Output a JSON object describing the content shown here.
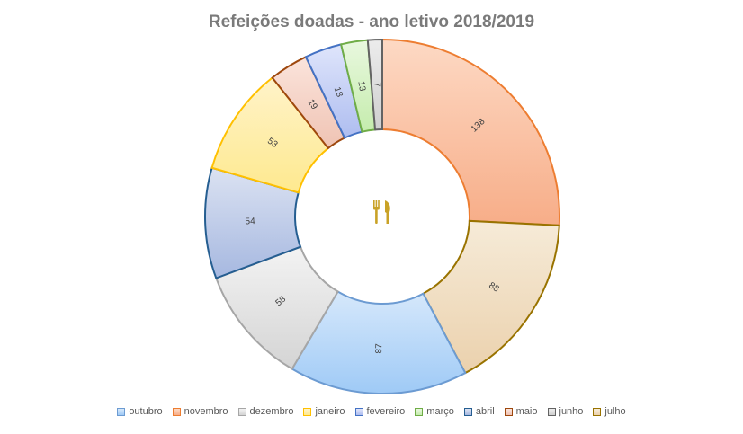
{
  "chart_data": {
    "type": "pie",
    "title": "Refeições doadas - ano letivo 2018/2019",
    "categories": [
      "outubro",
      "novembro",
      "dezembro",
      "janeiro",
      "fevereiro",
      "março",
      "abril",
      "maio",
      "junho",
      "julho"
    ],
    "series": [
      {
        "values": [
          87,
          138,
          58,
          53,
          18,
          13,
          54,
          19,
          7,
          88
        ]
      }
    ],
    "colors": {
      "outubro": {
        "fill_top": "#d6e8fb",
        "fill_bottom": "#9fcaf6",
        "stroke": "#6c9bd2"
      },
      "novembro": {
        "fill_top": "#fdd9c4",
        "fill_bottom": "#f7ad88",
        "stroke": "#ed7d31"
      },
      "dezembro": {
        "fill_top": "#f3f3f3",
        "fill_bottom": "#d4d4d4",
        "stroke": "#a6a6a6"
      },
      "janeiro": {
        "fill_top": "#fff3c9",
        "fill_bottom": "#fee98f",
        "stroke": "#ffc000"
      },
      "fevereiro": {
        "fill_top": "#dfe5fb",
        "fill_bottom": "#aebdf0",
        "stroke": "#4472c4"
      },
      "março": {
        "fill_top": "#e9f8df",
        "fill_bottom": "#c5ecad",
        "stroke": "#70ad47"
      },
      "abril": {
        "fill_top": "#dbe2f2",
        "fill_bottom": "#a6b8e0",
        "stroke": "#255e91"
      },
      "maio": {
        "fill_top": "#fbe4dc",
        "fill_bottom": "#efc3b3",
        "stroke": "#9e480e"
      },
      "junho": {
        "fill_top": "#ececec",
        "fill_bottom": "#cfcfcf",
        "stroke": "#636363"
      },
      "julho": {
        "fill_top": "#f6ebd8",
        "fill_bottom": "#ebd1ad",
        "stroke": "#997300"
      }
    },
    "center_icon": "fork-knife-icon",
    "center_icon_color": "#c9a227",
    "legend_position": "bottom",
    "donut": true
  }
}
